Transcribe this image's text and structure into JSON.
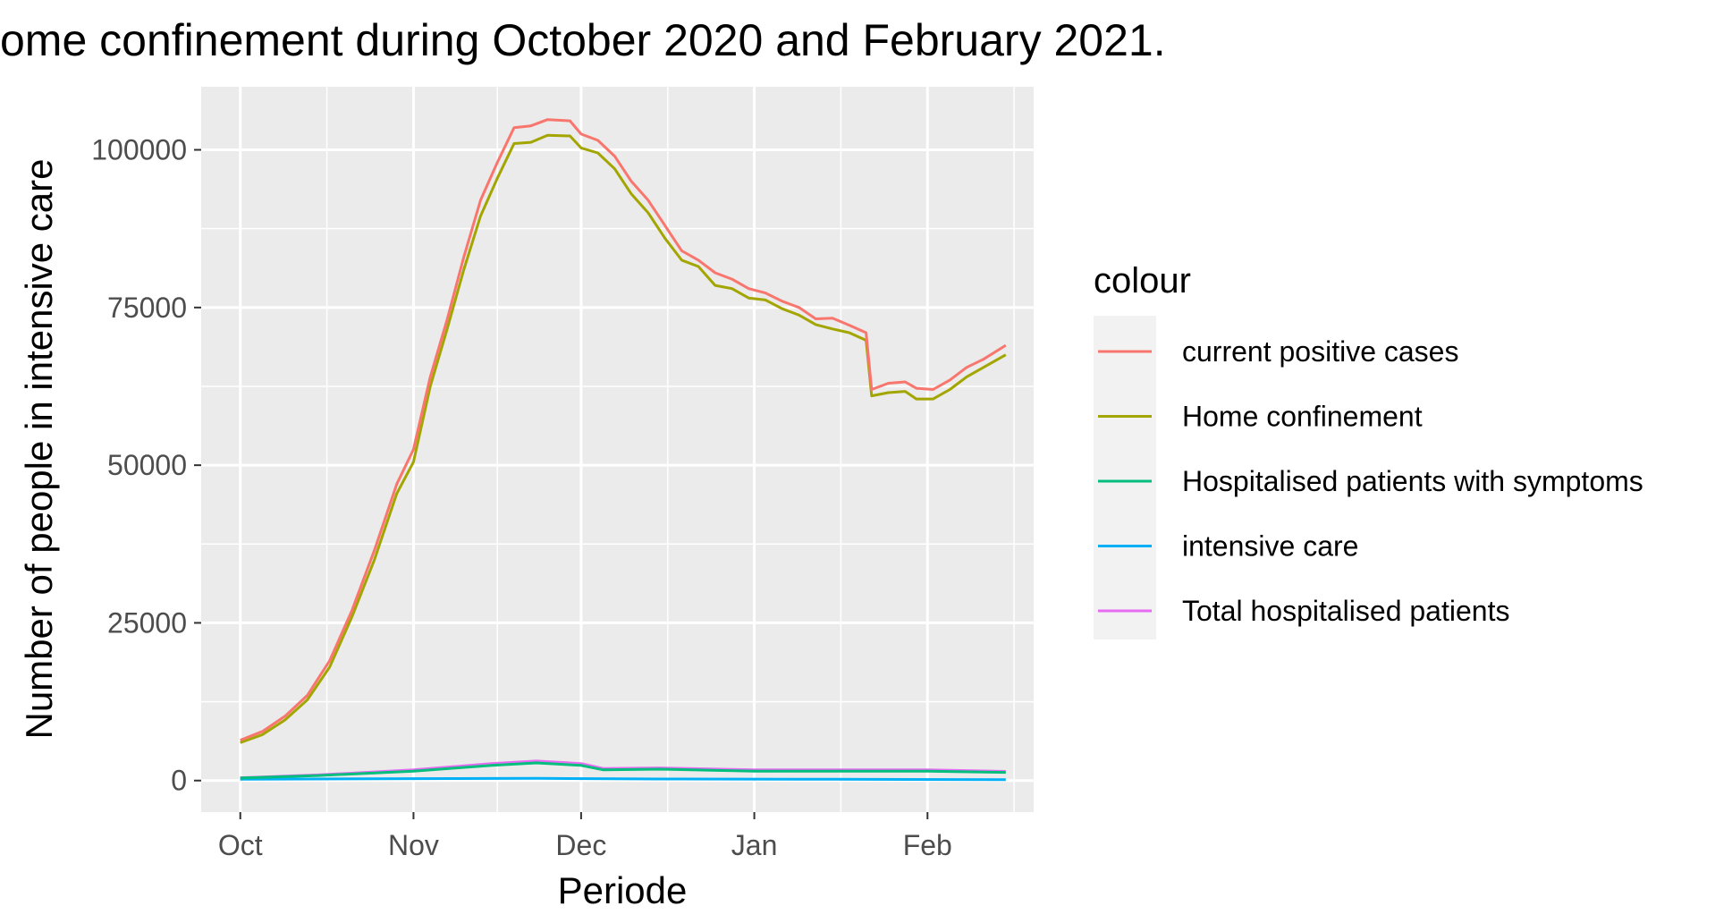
{
  "chart_data": {
    "type": "line",
    "title": "ome confinement during October 2020 and February 2021.",
    "xlabel": "Periode",
    "ylabel": "Number of people in intensive care",
    "x_ticks": [
      "Oct",
      "Nov",
      "Dec",
      "Jan",
      "Feb"
    ],
    "x_tick_dates": [
      "2020-10-01",
      "2020-11-01",
      "2020-12-01",
      "2021-01-01",
      "2021-02-01"
    ],
    "xlim": [
      "2020-09-24",
      "2021-02-20"
    ],
    "y_ticks": [
      0,
      25000,
      50000,
      75000,
      100000
    ],
    "y_tick_labels": [
      "0",
      "25000",
      "50000",
      "75000",
      "100000"
    ],
    "ylim": [
      -5000,
      110000
    ],
    "grid": true,
    "legend_position": "right",
    "legend_title": "colour",
    "series": [
      {
        "name": "current positive cases",
        "color": "#F8766D",
        "points": [
          [
            "2020-10-01",
            6400
          ],
          [
            "2020-10-05",
            7800
          ],
          [
            "2020-10-09",
            10200
          ],
          [
            "2020-10-13",
            13500
          ],
          [
            "2020-10-17",
            19000
          ],
          [
            "2020-10-21",
            27000
          ],
          [
            "2020-10-25",
            36500
          ],
          [
            "2020-10-29",
            47000
          ],
          [
            "2020-11-01",
            52500
          ],
          [
            "2020-11-04",
            64000
          ],
          [
            "2020-11-07",
            73000
          ],
          [
            "2020-11-10",
            83000
          ],
          [
            "2020-11-13",
            92000
          ],
          [
            "2020-11-16",
            98000
          ],
          [
            "2020-11-19",
            103500
          ],
          [
            "2020-11-22",
            103800
          ],
          [
            "2020-11-25",
            104800
          ],
          [
            "2020-11-29",
            104600
          ],
          [
            "2020-12-01",
            102500
          ],
          [
            "2020-12-04",
            101500
          ],
          [
            "2020-12-07",
            99000
          ],
          [
            "2020-12-10",
            95000
          ],
          [
            "2020-12-13",
            92000
          ],
          [
            "2020-12-16",
            88000
          ],
          [
            "2020-12-19",
            84000
          ],
          [
            "2020-12-22",
            82500
          ],
          [
            "2020-12-25",
            80500
          ],
          [
            "2020-12-28",
            79500
          ],
          [
            "2020-12-31",
            78000
          ],
          [
            "2021-01-03",
            77300
          ],
          [
            "2021-01-06",
            76000
          ],
          [
            "2021-01-09",
            75000
          ],
          [
            "2021-01-12",
            73200
          ],
          [
            "2021-01-15",
            73300
          ],
          [
            "2021-01-18",
            72200
          ],
          [
            "2021-01-21",
            71000
          ],
          [
            "2021-01-22",
            62000
          ],
          [
            "2021-01-25",
            63000
          ],
          [
            "2021-01-28",
            63200
          ],
          [
            "2021-01-30",
            62200
          ],
          [
            "2021-02-02",
            62000
          ],
          [
            "2021-02-05",
            63500
          ],
          [
            "2021-02-08",
            65500
          ],
          [
            "2021-02-11",
            66800
          ],
          [
            "2021-02-15",
            69000
          ]
        ]
      },
      {
        "name": "Home confinement",
        "color": "#A3A500",
        "points": [
          [
            "2020-10-01",
            6000
          ],
          [
            "2020-10-05",
            7300
          ],
          [
            "2020-10-09",
            9600
          ],
          [
            "2020-10-13",
            12800
          ],
          [
            "2020-10-17",
            18000
          ],
          [
            "2020-10-21",
            26000
          ],
          [
            "2020-10-25",
            35000
          ],
          [
            "2020-10-29",
            45500
          ],
          [
            "2020-11-01",
            50500
          ],
          [
            "2020-11-04",
            62500
          ],
          [
            "2020-11-07",
            71500
          ],
          [
            "2020-11-10",
            81000
          ],
          [
            "2020-11-13",
            89500
          ],
          [
            "2020-11-16",
            95500
          ],
          [
            "2020-11-19",
            101000
          ],
          [
            "2020-11-22",
            101200
          ],
          [
            "2020-11-25",
            102300
          ],
          [
            "2020-11-29",
            102200
          ],
          [
            "2020-12-01",
            100300
          ],
          [
            "2020-12-04",
            99500
          ],
          [
            "2020-12-07",
            97000
          ],
          [
            "2020-12-10",
            93000
          ],
          [
            "2020-12-13",
            90000
          ],
          [
            "2020-12-16",
            86000
          ],
          [
            "2020-12-19",
            82500
          ],
          [
            "2020-12-22",
            81500
          ],
          [
            "2020-12-25",
            78500
          ],
          [
            "2020-12-28",
            78000
          ],
          [
            "2020-12-31",
            76500
          ],
          [
            "2021-01-03",
            76200
          ],
          [
            "2021-01-06",
            74800
          ],
          [
            "2021-01-09",
            73800
          ],
          [
            "2021-01-12",
            72300
          ],
          [
            "2021-01-15",
            71600
          ],
          [
            "2021-01-18",
            71000
          ],
          [
            "2021-01-21",
            69800
          ],
          [
            "2021-01-22",
            61000
          ],
          [
            "2021-01-25",
            61500
          ],
          [
            "2021-01-28",
            61700
          ],
          [
            "2021-01-30",
            60500
          ],
          [
            "2021-02-02",
            60500
          ],
          [
            "2021-02-05",
            62000
          ],
          [
            "2021-02-08",
            64000
          ],
          [
            "2021-02-11",
            65500
          ],
          [
            "2021-02-15",
            67500
          ]
        ]
      },
      {
        "name": "Hospitalised patients with symptoms",
        "color": "#00BF7D",
        "points": [
          [
            "2020-10-01",
            400
          ],
          [
            "2020-10-15",
            800
          ],
          [
            "2020-11-01",
            1500
          ],
          [
            "2020-11-15",
            2400
          ],
          [
            "2020-11-23",
            2800
          ],
          [
            "2020-12-01",
            2400
          ],
          [
            "2020-12-05",
            1700
          ],
          [
            "2020-12-15",
            1800
          ],
          [
            "2021-01-01",
            1500
          ],
          [
            "2021-01-15",
            1500
          ],
          [
            "2021-02-01",
            1500
          ],
          [
            "2021-02-15",
            1300
          ]
        ]
      },
      {
        "name": "intensive care",
        "color": "#00B0F6",
        "points": [
          [
            "2020-10-01",
            200
          ],
          [
            "2020-11-01",
            300
          ],
          [
            "2020-11-23",
            350
          ],
          [
            "2020-12-15",
            250
          ],
          [
            "2021-01-15",
            200
          ],
          [
            "2021-02-15",
            150
          ]
        ]
      },
      {
        "name": "Total hospitalised patients",
        "color": "#E76BF3",
        "points": [
          [
            "2020-10-01",
            450
          ],
          [
            "2020-10-15",
            900
          ],
          [
            "2020-11-01",
            1700
          ],
          [
            "2020-11-15",
            2700
          ],
          [
            "2020-11-23",
            3100
          ],
          [
            "2020-12-01",
            2700
          ],
          [
            "2020-12-05",
            1900
          ],
          [
            "2020-12-15",
            2000
          ],
          [
            "2021-01-01",
            1700
          ],
          [
            "2021-01-15",
            1700
          ],
          [
            "2021-02-01",
            1700
          ],
          [
            "2021-02-15",
            1450
          ]
        ]
      }
    ]
  }
}
